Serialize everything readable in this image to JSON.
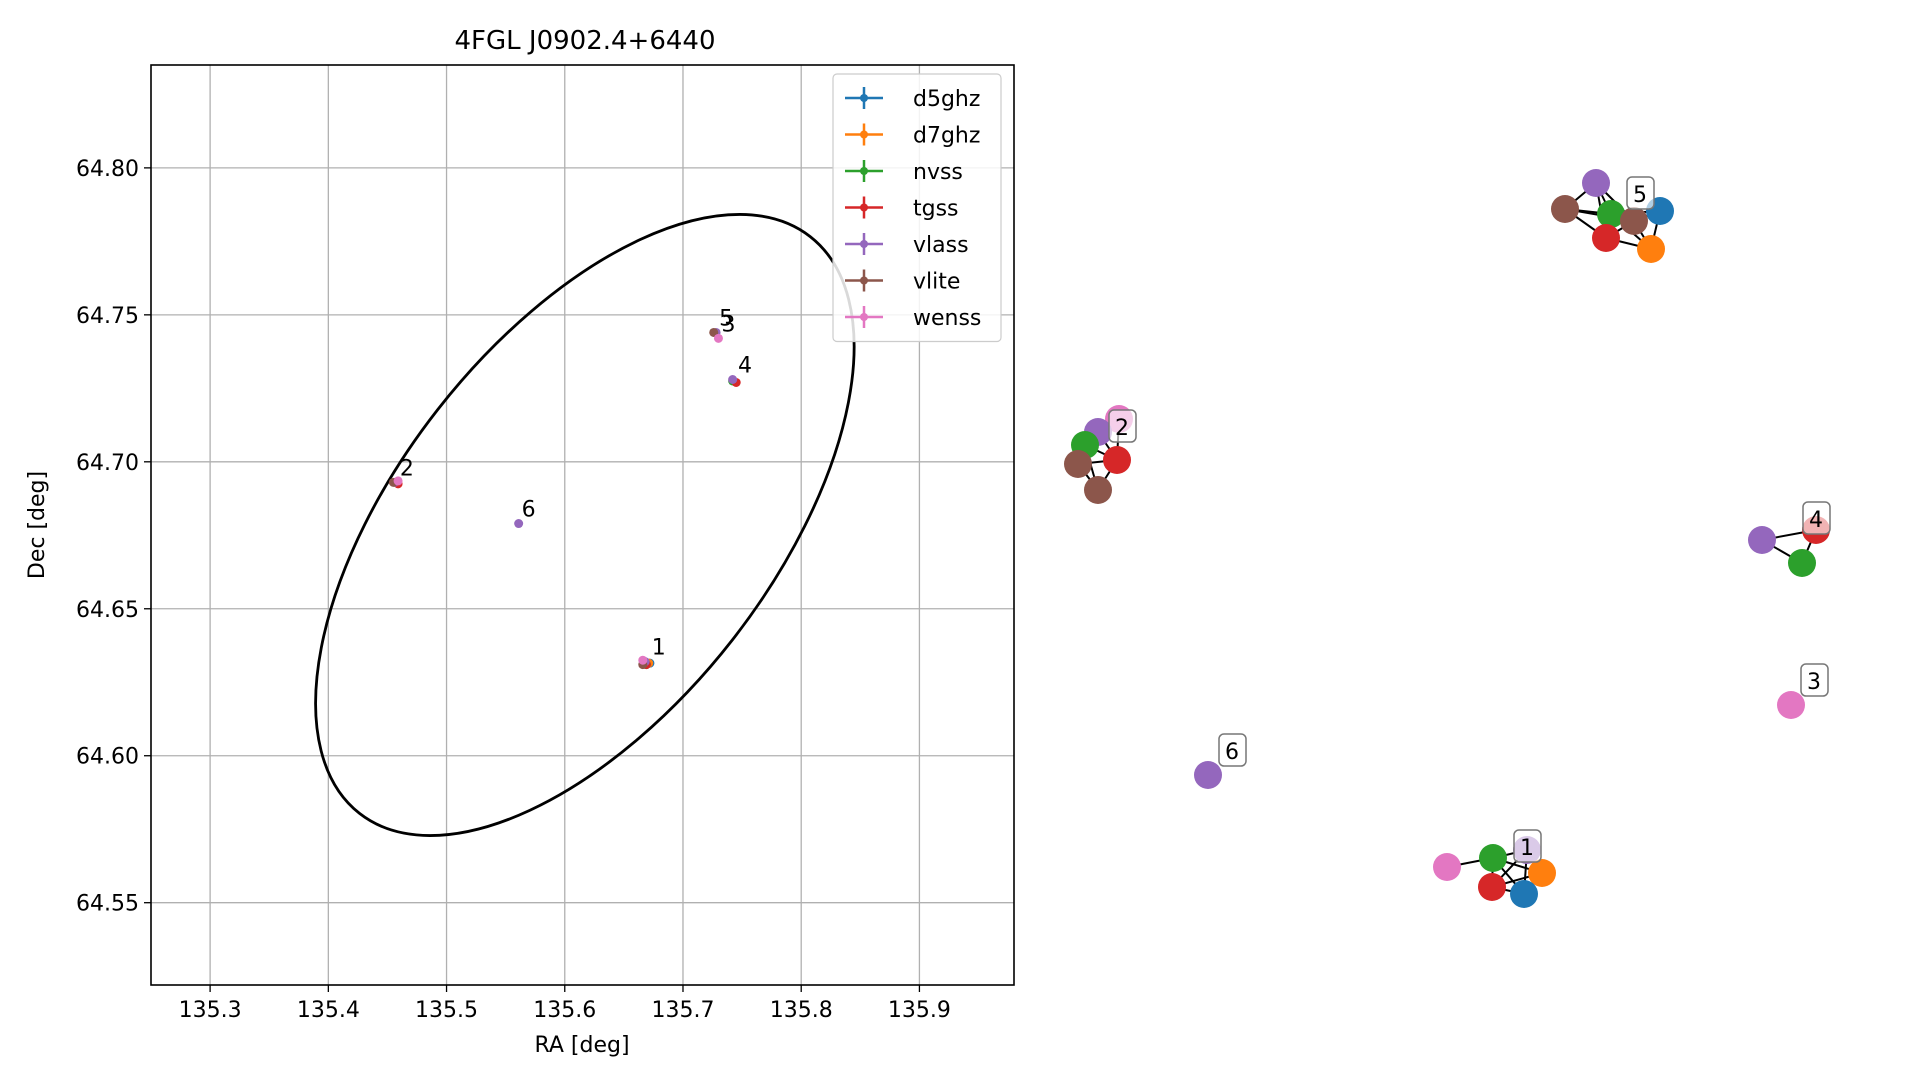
{
  "chart_data": [
    {
      "type": "scatter",
      "title": "4FGL J0902.4+6440",
      "xlabel": "RA [deg]",
      "ylabel": "Dec [deg]",
      "xlim": [
        135.25,
        135.98
      ],
      "ylim": [
        64.522,
        64.835
      ],
      "xticks": [
        135.3,
        135.4,
        135.5,
        135.6,
        135.7,
        135.8,
        135.9
      ],
      "xtick_labels": [
        "135.3",
        "135.4",
        "135.5",
        "135.6",
        "135.7",
        "135.8",
        "135.9"
      ],
      "yticks": [
        64.55,
        64.6,
        64.65,
        64.7,
        64.75,
        64.8
      ],
      "ytick_labels": [
        "64.55",
        "64.60",
        "64.65",
        "64.70",
        "64.75",
        "64.80"
      ],
      "grid": true,
      "legend_position": "top-right",
      "series": [
        {
          "name": "d5ghz",
          "color": "#1f77b4",
          "points": [
            [
              135.672,
              64.6315
            ]
          ]
        },
        {
          "name": "d7ghz",
          "color": "#ff7f0e",
          "points": [
            [
              135.671,
              64.6315
            ]
          ]
        },
        {
          "name": "nvss",
          "color": "#2ca02c",
          "points": [
            [
              135.669,
              64.631
            ],
            [
              135.457,
              64.693
            ],
            [
              135.742,
              64.7275
            ]
          ]
        },
        {
          "name": "tgss",
          "color": "#d62728",
          "points": [
            [
              135.669,
              64.631
            ],
            [
              135.459,
              64.6925
            ],
            [
              135.745,
              64.727
            ]
          ]
        },
        {
          "name": "vlass",
          "color": "#9467bd",
          "points": [
            [
              135.668,
              64.632
            ],
            [
              135.456,
              64.693
            ],
            [
              135.742,
              64.728
            ],
            [
              135.561,
              64.679
            ],
            [
              135.728,
              64.744
            ]
          ]
        },
        {
          "name": "vlite",
          "color": "#8c564b",
          "points": [
            [
              135.666,
              64.631
            ],
            [
              135.455,
              64.693
            ],
            [
              135.726,
              64.744
            ]
          ]
        },
        {
          "name": "wenss",
          "color": "#e377c2",
          "points": [
            [
              135.666,
              64.6325
            ],
            [
              135.459,
              64.6935
            ],
            [
              135.73,
              64.742
            ]
          ]
        }
      ],
      "annotations": [
        {
          "text": "1",
          "x": 135.671,
          "y": 64.633
        },
        {
          "text": "2",
          "x": 135.458,
          "y": 64.694
        },
        {
          "text": "3",
          "x": 135.73,
          "y": 64.743
        },
        {
          "text": "4",
          "x": 135.744,
          "y": 64.729
        },
        {
          "text": "5",
          "x": 135.728,
          "y": 64.745
        },
        {
          "text": "6",
          "x": 135.561,
          "y": 64.68
        }
      ],
      "error_ellipse": {
        "center_ra": 135.617,
        "center_dec": 64.6785,
        "color": "#000000"
      }
    },
    {
      "type": "network",
      "node_colors": {
        "d5ghz": "#1f77b4",
        "d7ghz": "#ff7f0e",
        "nvss": "#2ca02c",
        "tgss": "#d62728",
        "vlass": "#9467bd",
        "vlite": "#8c564b",
        "wenss": "#e377c2"
      },
      "clusters": [
        {
          "label": "5",
          "nodes": [
            "vlass",
            "vlite",
            "nvss",
            "tgss",
            "d7ghz",
            "d5ghz",
            "vlite"
          ]
        },
        {
          "label": "2",
          "nodes": [
            "wenss",
            "vlass",
            "nvss",
            "vlite",
            "tgss",
            "vlite"
          ]
        },
        {
          "label": "4",
          "nodes": [
            "vlass",
            "tgss",
            "nvss"
          ]
        },
        {
          "label": "3",
          "nodes": [
            "wenss"
          ]
        },
        {
          "label": "6",
          "nodes": [
            "vlass"
          ]
        },
        {
          "label": "1",
          "nodes": [
            "wenss",
            "nvss",
            "vlass",
            "tgss",
            "d7ghz",
            "d5ghz"
          ]
        }
      ]
    }
  ]
}
